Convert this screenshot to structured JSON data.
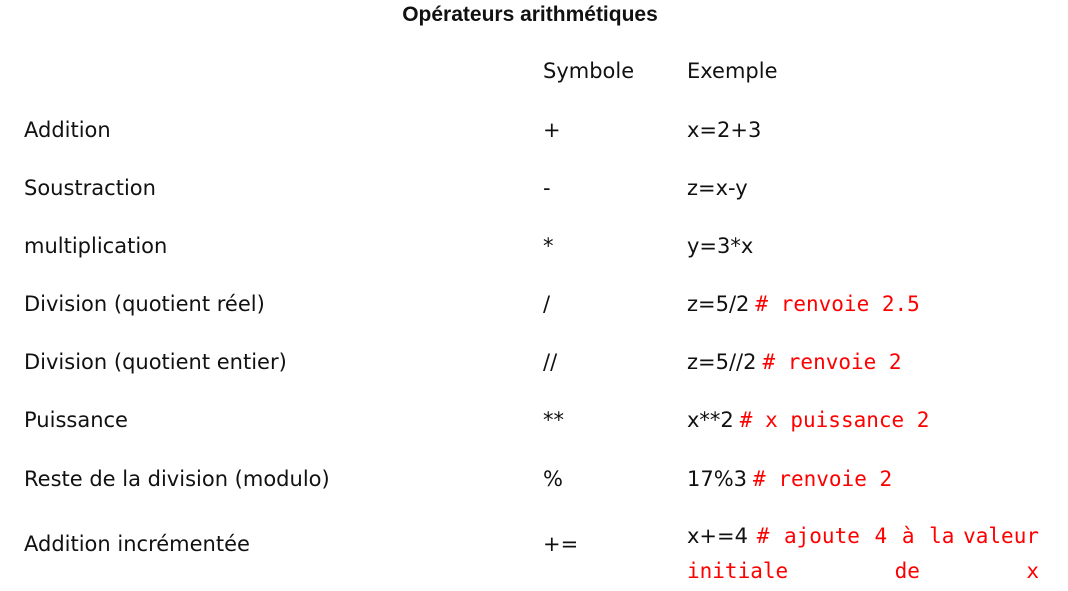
{
  "title": "Opérateurs arithmétiques",
  "headers": {
    "symbol": "Symbole",
    "example": "Exemple"
  },
  "rows": [
    {
      "name": "Addition",
      "symbol": "+",
      "example": "x=2+3",
      "comment": ""
    },
    {
      "name": "Soustraction",
      "symbol": "-",
      "example": "z=x-y",
      "comment": ""
    },
    {
      "name": "multiplication",
      "symbol": "*",
      "example": "y=3*x",
      "comment": ""
    },
    {
      "name": "Division (quotient réel)",
      "symbol": "/",
      "example": "z=5/2",
      "comment": "# renvoie 2.5"
    },
    {
      "name": "Division (quotient entier)",
      "symbol": "//",
      "example": "z=5//2",
      "comment": "# renvoie 2"
    },
    {
      "name": "Puissance",
      "symbol": "**",
      "example": "x**2",
      "comment": "# x puissance 2"
    },
    {
      "name": "Reste de la division (modulo)",
      "symbol": "%",
      "example": "17%3",
      "comment": "# renvoie 2"
    }
  ],
  "last_row": {
    "name": "Addition incrémentée",
    "symbol": "+=",
    "example": "x+=4",
    "comment_line1": "# ajoute 4 à la",
    "comment_line2": "valeur initiale de x"
  }
}
